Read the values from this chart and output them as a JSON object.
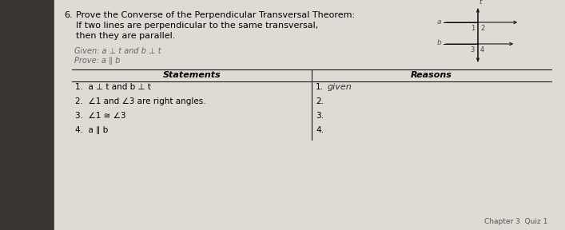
{
  "background_color": "#c8c4be",
  "page_color": "#dedad4",
  "left_margin_color": "#3a3530",
  "title_number": "6.",
  "title_line1": "Prove the Converse of the Perpendicular Transversal Theorem:",
  "title_line2": "If two lines are perpendicular to the same transversal,",
  "title_line3": "then they are parallel.",
  "given_text": "Given: a ⊥ t and b ⊥ t",
  "prove_text": "Prove: a ∥ b",
  "statements_header": "Statements",
  "reasons_header": "Reasons",
  "statements": [
    "1.  a ⊥ t and b ⊥ t",
    "2.  ∠1 and ∠3 are right angles.",
    "3.  ∠1 ≅ ∠3",
    "4.  a ∥ b"
  ],
  "reasons_numbers": [
    "1.",
    "2.",
    "3.",
    "4."
  ],
  "reason1_text": "given",
  "diagram_a_label": "a",
  "diagram_b_label": "b",
  "diagram_t_label": "t",
  "footer_text": "Chapter 3  Quiz 1"
}
